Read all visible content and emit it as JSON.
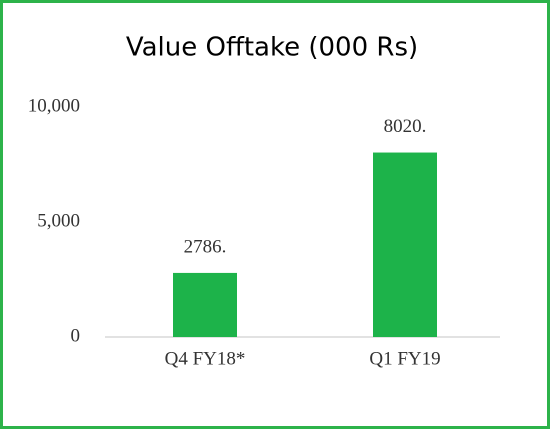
{
  "chart_data": {
    "type": "bar",
    "title": "Value Offtake (000 Rs)",
    "categories": [
      "Q4 FY18*",
      "Q1 FY19"
    ],
    "values": [
      2786,
      8020
    ],
    "value_labels": [
      "2786.",
      "8020."
    ],
    "color": "#1db34a",
    "ylim": [
      0,
      10000
    ],
    "yticks": [
      0,
      {
        "value": 5000,
        "label": "5,000"
      },
      {
        "value": 10000,
        "label": "10,000"
      }
    ],
    "grid": false
  }
}
